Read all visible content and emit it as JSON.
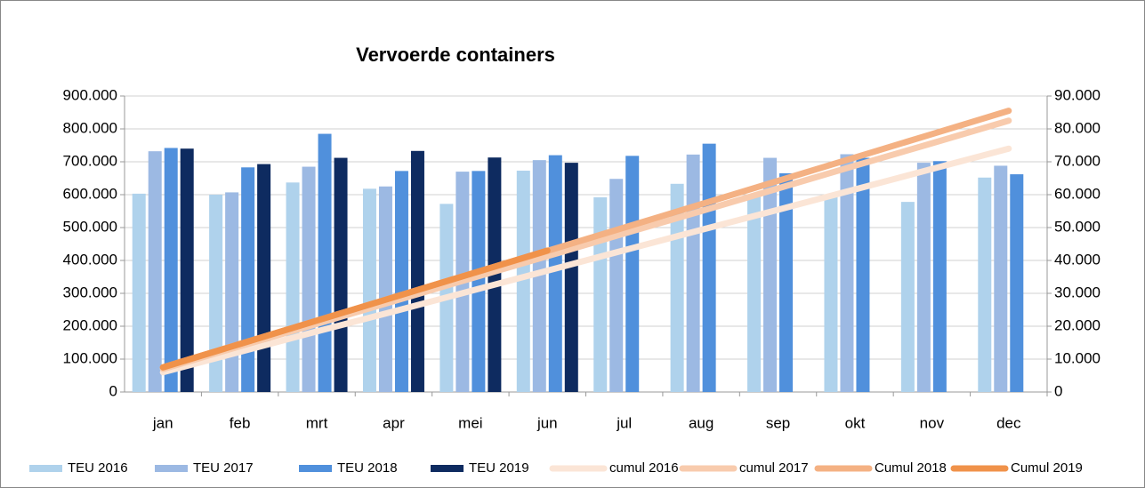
{
  "chart_data": {
    "type": "bar",
    "title": "Vervoerde containers",
    "categories": [
      "jan",
      "feb",
      "mrt",
      "apr",
      "mei",
      "jun",
      "jul",
      "aug",
      "sep",
      "okt",
      "nov",
      "dec"
    ],
    "series": [
      {
        "name": "TEU 2016",
        "color": "#afd2ec",
        "values": [
          603000,
          600000,
          637000,
          618000,
          572000,
          673000,
          592000,
          633000,
          600000,
          600000,
          578000,
          652000
        ]
      },
      {
        "name": "TEU 2017",
        "color": "#9cb9e3",
        "values": [
          732000,
          607000,
          685000,
          625000,
          670000,
          705000,
          648000,
          722000,
          712000,
          723000,
          697000,
          688000
        ]
      },
      {
        "name": "TEU 2018",
        "color": "#5090dc",
        "values": [
          742000,
          683000,
          785000,
          672000,
          672000,
          720000,
          718000,
          755000,
          665000,
          712000,
          702000,
          662000
        ]
      },
      {
        "name": "TEU 2019",
        "color": "#0e2b60",
        "values": [
          740000,
          693000,
          712000,
          733000,
          713000,
          697000,
          null,
          null,
          null,
          null,
          null,
          null
        ]
      },
      {
        "name": "cumul 2016",
        "color": "#fbe5d6",
        "axis": "y2",
        "type": "line",
        "values": [
          6000,
          12200,
          18400,
          24500,
          30700,
          36900,
          43100,
          49300,
          55400,
          61600,
          67800,
          74000
        ]
      },
      {
        "name": "cumul 2017",
        "color": "#f8cbad",
        "axis": "y2",
        "type": "line",
        "values": [
          7000,
          13900,
          20700,
          27600,
          34500,
          41300,
          48200,
          55000,
          61900,
          68800,
          75600,
          82500
        ]
      },
      {
        "name": "Cumul 2018",
        "color": "#f4b183",
        "axis": "y2",
        "type": "line",
        "values": [
          7500,
          14600,
          21700,
          28800,
          35900,
          42900,
          50000,
          57100,
          64200,
          71300,
          78400,
          85500
        ]
      },
      {
        "name": "Cumul 2019",
        "color": "#f0924a",
        "axis": "y2",
        "type": "line",
        "values": [
          7500,
          14600,
          21700,
          28800,
          35900,
          43000,
          null,
          null,
          null,
          null,
          null,
          null
        ]
      }
    ],
    "ylim": [
      0,
      900000
    ],
    "yticks": [
      0,
      {
        "value": 100000,
        "label": "100.000"
      },
      {
        "value": 200000,
        "label": "200.000"
      },
      {
        "value": 300000,
        "label": "300.000"
      },
      {
        "value": 400000,
        "label": "400.000"
      },
      {
        "value": 500000,
        "label": "500.000"
      },
      {
        "value": 600000,
        "label": "600.000"
      },
      {
        "value": 700000,
        "label": "700.000"
      },
      {
        "value": 800000,
        "label": "800.000"
      },
      {
        "value": 900000,
        "label": "900.000"
      }
    ],
    "y2lim": [
      0,
      90000
    ],
    "y2ticks": [
      0,
      {
        "value": 10000,
        "label": "10.000"
      },
      {
        "value": 20000,
        "label": "20.000"
      },
      {
        "value": 30000,
        "label": "30.000"
      },
      {
        "value": 40000,
        "label": "40.000"
      },
      {
        "value": 50000,
        "label": "50.000"
      },
      {
        "value": 60000,
        "label": "60.000"
      },
      {
        "value": 70000,
        "label": "70.000"
      },
      {
        "value": 80000,
        "label": "80.000"
      },
      {
        "value": 90000,
        "label": "90.000"
      }
    ],
    "grid": true,
    "legend": "bottom"
  }
}
